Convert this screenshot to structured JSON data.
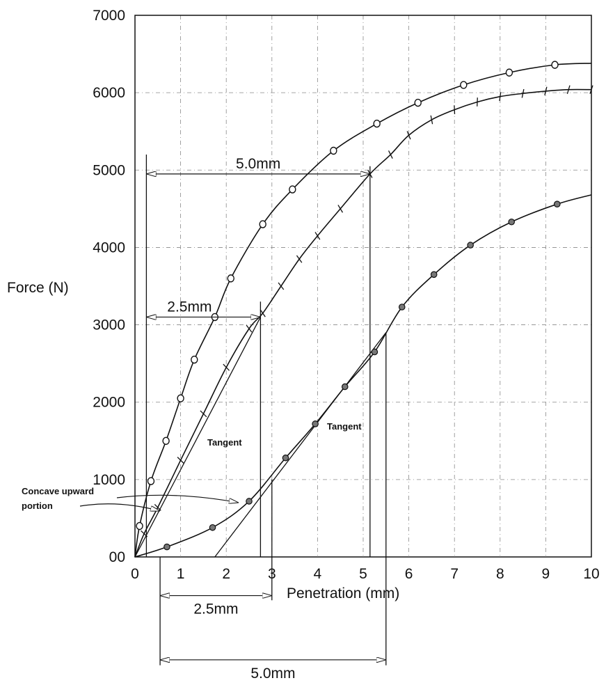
{
  "chart_data": {
    "type": "line",
    "xlabel": "Penetration (mm)",
    "ylabel": "Force (N)",
    "xlim": [
      0,
      10
    ],
    "ylim": [
      0,
      7000
    ],
    "x_ticks": [
      "0",
      "1",
      "2",
      "3",
      "4",
      "5",
      "6",
      "7",
      "8",
      "9",
      "10"
    ],
    "y_ticks": [
      "00",
      "1000",
      "2000",
      "3000",
      "4000",
      "5000",
      "6000",
      "7000"
    ],
    "grid": true,
    "series": [
      {
        "marker": "open-circle",
        "x": [
          0,
          0.1,
          0.35,
          0.68,
          1.0,
          1.3,
          1.75,
          2.1,
          2.8,
          3.45,
          4.35,
          5.3,
          6.2,
          7.2,
          8.2,
          9.2,
          10.0
        ],
        "y": [
          0,
          400,
          980,
          1500,
          2050,
          2550,
          3100,
          3600,
          4300,
          4750,
          5250,
          5600,
          5870,
          6100,
          6260,
          6360,
          6380
        ]
      },
      {
        "marker": "tick",
        "x": [
          0,
          0.2,
          0.5,
          1.0,
          1.5,
          2.0,
          2.5,
          2.8,
          3.2,
          3.6,
          4.0,
          4.5,
          5.15,
          5.6,
          6.0,
          6.5,
          7.0,
          7.5,
          8.0,
          8.5,
          9.0,
          9.5,
          10.0
        ],
        "y": [
          0,
          300,
          640,
          1250,
          1850,
          2450,
          2950,
          3150,
          3500,
          3850,
          4150,
          4500,
          4950,
          5200,
          5450,
          5650,
          5780,
          5880,
          5950,
          5990,
          6020,
          6040,
          6040
        ]
      },
      {
        "marker": "filled-circle",
        "x": [
          0,
          0.7,
          1.7,
          2.5,
          3.3,
          3.95,
          4.6,
          5.25,
          5.85,
          6.55,
          7.35,
          8.25,
          9.25,
          10.0
        ],
        "y": [
          0,
          130,
          380,
          720,
          1280,
          1720,
          2200,
          2650,
          3230,
          3650,
          4030,
          4330,
          4560,
          4680
        ]
      }
    ],
    "tangents": [
      {
        "label": "Tangent",
        "x": [
          0,
          2.75
        ],
        "y": [
          0,
          3100
        ]
      },
      {
        "label": "Tangent",
        "x": [
          1.75,
          5.5
        ],
        "y": [
          0,
          2900
        ]
      }
    ],
    "guides": [
      {
        "x": 0.25,
        "y_range": [
          0,
          5200
        ]
      },
      {
        "x": 0.55,
        "y_range": [
          -1400,
          0
        ]
      },
      {
        "x": 2.75,
        "y_range": [
          0,
          3300
        ]
      },
      {
        "x": 3.0,
        "y_range": [
          -560,
          1000
        ]
      },
      {
        "x": 5.15,
        "y_range": [
          0,
          5050
        ]
      },
      {
        "x": 5.5,
        "y_range": [
          -1400,
          2900
        ]
      }
    ],
    "dimensions": [
      {
        "text": "5.0mm",
        "x1": 0.25,
        "x2": 5.15,
        "y": 4950
      },
      {
        "text": "2.5mm",
        "x1": 0.25,
        "x2": 2.75,
        "y": 3100
      },
      {
        "text": "2.5mm",
        "x1": 0.55,
        "x2": 3.0,
        "y": -500
      },
      {
        "text": "5.0mm",
        "x1": 0.55,
        "x2": 5.5,
        "y": -1330
      }
    ],
    "annotation": {
      "text_lines": [
        "Concave upward",
        "portion"
      ]
    }
  }
}
